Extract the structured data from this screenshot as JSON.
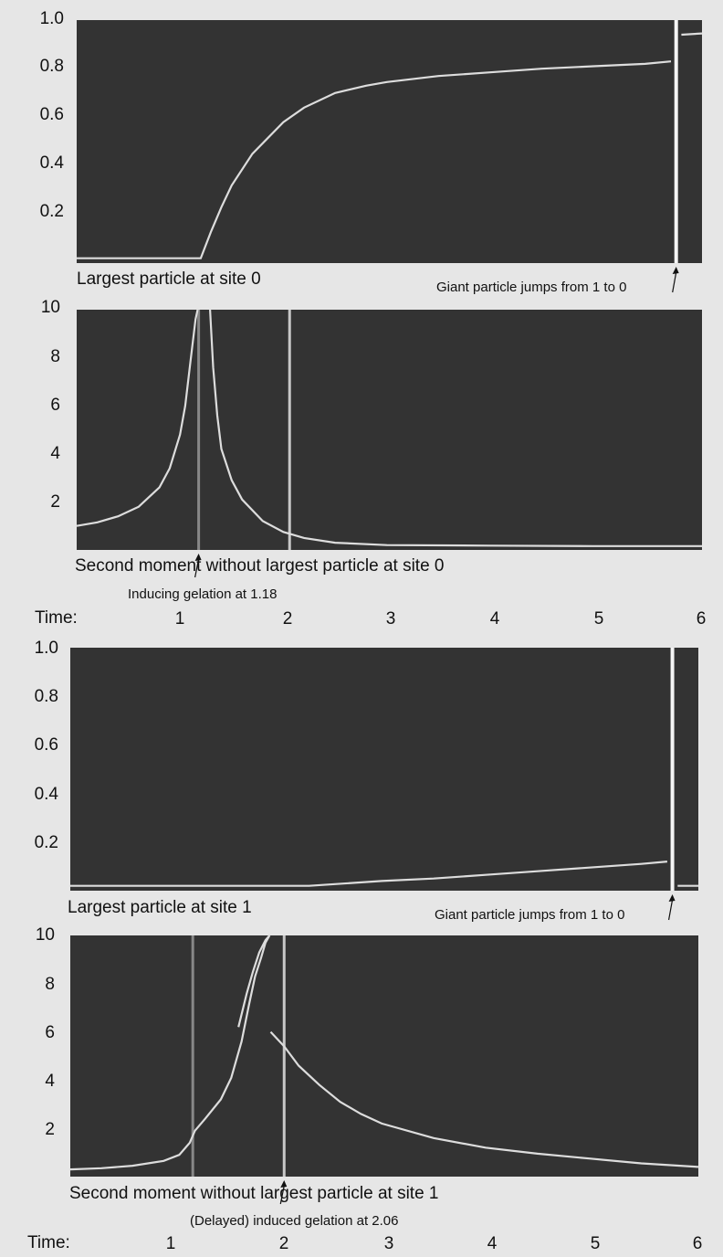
{
  "chart_data": [
    {
      "type": "line",
      "caption": "Largest particle at site 0",
      "ylim": [
        0,
        1.0
      ],
      "yticks": [
        "1.0",
        "0.8",
        "0.6",
        "0.4",
        "0.2"
      ],
      "xlim": [
        0.0,
        6.05
      ],
      "series": [
        {
          "x": [
            0.0,
            1.2,
            1.3,
            1.4,
            1.5,
            1.7,
            2.0,
            2.2,
            2.5,
            2.8,
            3.0,
            3.5,
            4.0,
            4.5,
            5.0,
            5.5,
            5.75
          ],
          "y": [
            0.02,
            0.02,
            0.13,
            0.23,
            0.32,
            0.45,
            0.58,
            0.64,
            0.7,
            0.73,
            0.745,
            0.77,
            0.785,
            0.8,
            0.81,
            0.82,
            0.83
          ]
        },
        {
          "x": [
            5.85,
            6.05
          ],
          "y": [
            0.94,
            0.945
          ]
        }
      ],
      "vlines": [
        5.8
      ],
      "annotation": "Giant particle jumps from 1 to 0",
      "annotation_x": 5.8
    },
    {
      "type": "line",
      "caption": "Second moment without largest particle at site 0",
      "ylim": [
        0,
        10
      ],
      "yticks": [
        "10",
        "8",
        "6",
        "4",
        "2"
      ],
      "xlim": [
        0.0,
        6.05
      ],
      "series": [
        {
          "x": [
            0.0,
            0.2,
            0.4,
            0.6,
            0.8,
            0.9,
            1.0,
            1.05,
            1.1,
            1.15,
            1.17
          ],
          "y": [
            1.0,
            1.15,
            1.4,
            1.8,
            2.6,
            3.4,
            4.8,
            6.0,
            7.8,
            9.6,
            10.0
          ]
        },
        {
          "x": [
            1.29,
            1.32,
            1.36,
            1.4,
            1.5,
            1.6,
            1.8,
            2.0,
            2.2,
            2.5,
            3.0,
            4.0,
            5.0,
            6.05
          ],
          "y": [
            10.0,
            7.6,
            5.6,
            4.2,
            2.9,
            2.1,
            1.2,
            0.75,
            0.5,
            0.3,
            0.2,
            0.18,
            0.16,
            0.16
          ]
        }
      ],
      "vlines": [
        1.18,
        2.06
      ],
      "annotation": "Inducing gelation at 1.18",
      "annotation_x": 1.18
    },
    {
      "type": "line",
      "caption": "Largest particle at site 1",
      "ylim": [
        0,
        1.0
      ],
      "yticks": [
        "1.0",
        "0.8",
        "0.6",
        "0.4",
        "0.2"
      ],
      "xlim": [
        0.0,
        6.05
      ],
      "series": [
        {
          "x": [
            0.0,
            2.3,
            3.0,
            3.5,
            4.0,
            4.5,
            5.0,
            5.5,
            5.75
          ],
          "y": [
            0.02,
            0.02,
            0.04,
            0.05,
            0.065,
            0.08,
            0.095,
            0.11,
            0.12
          ]
        },
        {
          "x": [
            5.85,
            6.05
          ],
          "y": [
            0.02,
            0.02
          ]
        }
      ],
      "vlines": [
        5.8
      ],
      "annotation": "Giant particle jumps from 1 to 0",
      "annotation_x": 5.8
    },
    {
      "type": "line",
      "caption": "Second moment without largest particle at site 1",
      "ylim": [
        0,
        10
      ],
      "yticks": [
        "10",
        "8",
        "6",
        "4",
        "2"
      ],
      "xlim": [
        0.0,
        6.05
      ],
      "series": [
        {
          "x": [
            0.0,
            0.3,
            0.6,
            0.9,
            1.05,
            1.15,
            1.2,
            1.3,
            1.45,
            1.55,
            1.65,
            1.72,
            1.78,
            1.84,
            1.88,
            1.92
          ],
          "y": [
            0.3,
            0.35,
            0.45,
            0.65,
            0.9,
            1.4,
            1.9,
            2.4,
            3.2,
            4.1,
            5.6,
            7.1,
            8.3,
            9.1,
            9.7,
            10.0
          ]
        },
        {
          "x": [
            1.62,
            1.7,
            1.76,
            1.82,
            1.88,
            1.92
          ],
          "y": [
            6.2,
            7.6,
            8.5,
            9.3,
            9.8,
            10.0
          ]
        },
        {
          "x": [
            1.93,
            2.06,
            2.2,
            2.4,
            2.6,
            2.8,
            3.0,
            3.5,
            4.0,
            4.5,
            5.0,
            5.5,
            6.05
          ],
          "y": [
            6.0,
            5.4,
            4.6,
            3.8,
            3.1,
            2.6,
            2.2,
            1.6,
            1.2,
            0.95,
            0.75,
            0.55,
            0.4
          ]
        }
      ],
      "vlines": [
        1.18,
        2.06
      ],
      "annotation": "(Delayed) induced gelation at 2.06",
      "annotation_x": 2.06
    }
  ],
  "time_axis": {
    "label": "Time:",
    "ticks": [
      "1",
      "2",
      "3",
      "4",
      "5",
      "6"
    ],
    "values": [
      1,
      2,
      3,
      4,
      5,
      6
    ]
  },
  "colors": {
    "panel": "#333333",
    "curve": "#dddddd",
    "vline_dark": "#888888",
    "vline_light": "#c8c8c8",
    "vline_white": "#f5f5f5",
    "background": "#e6e6e6"
  }
}
